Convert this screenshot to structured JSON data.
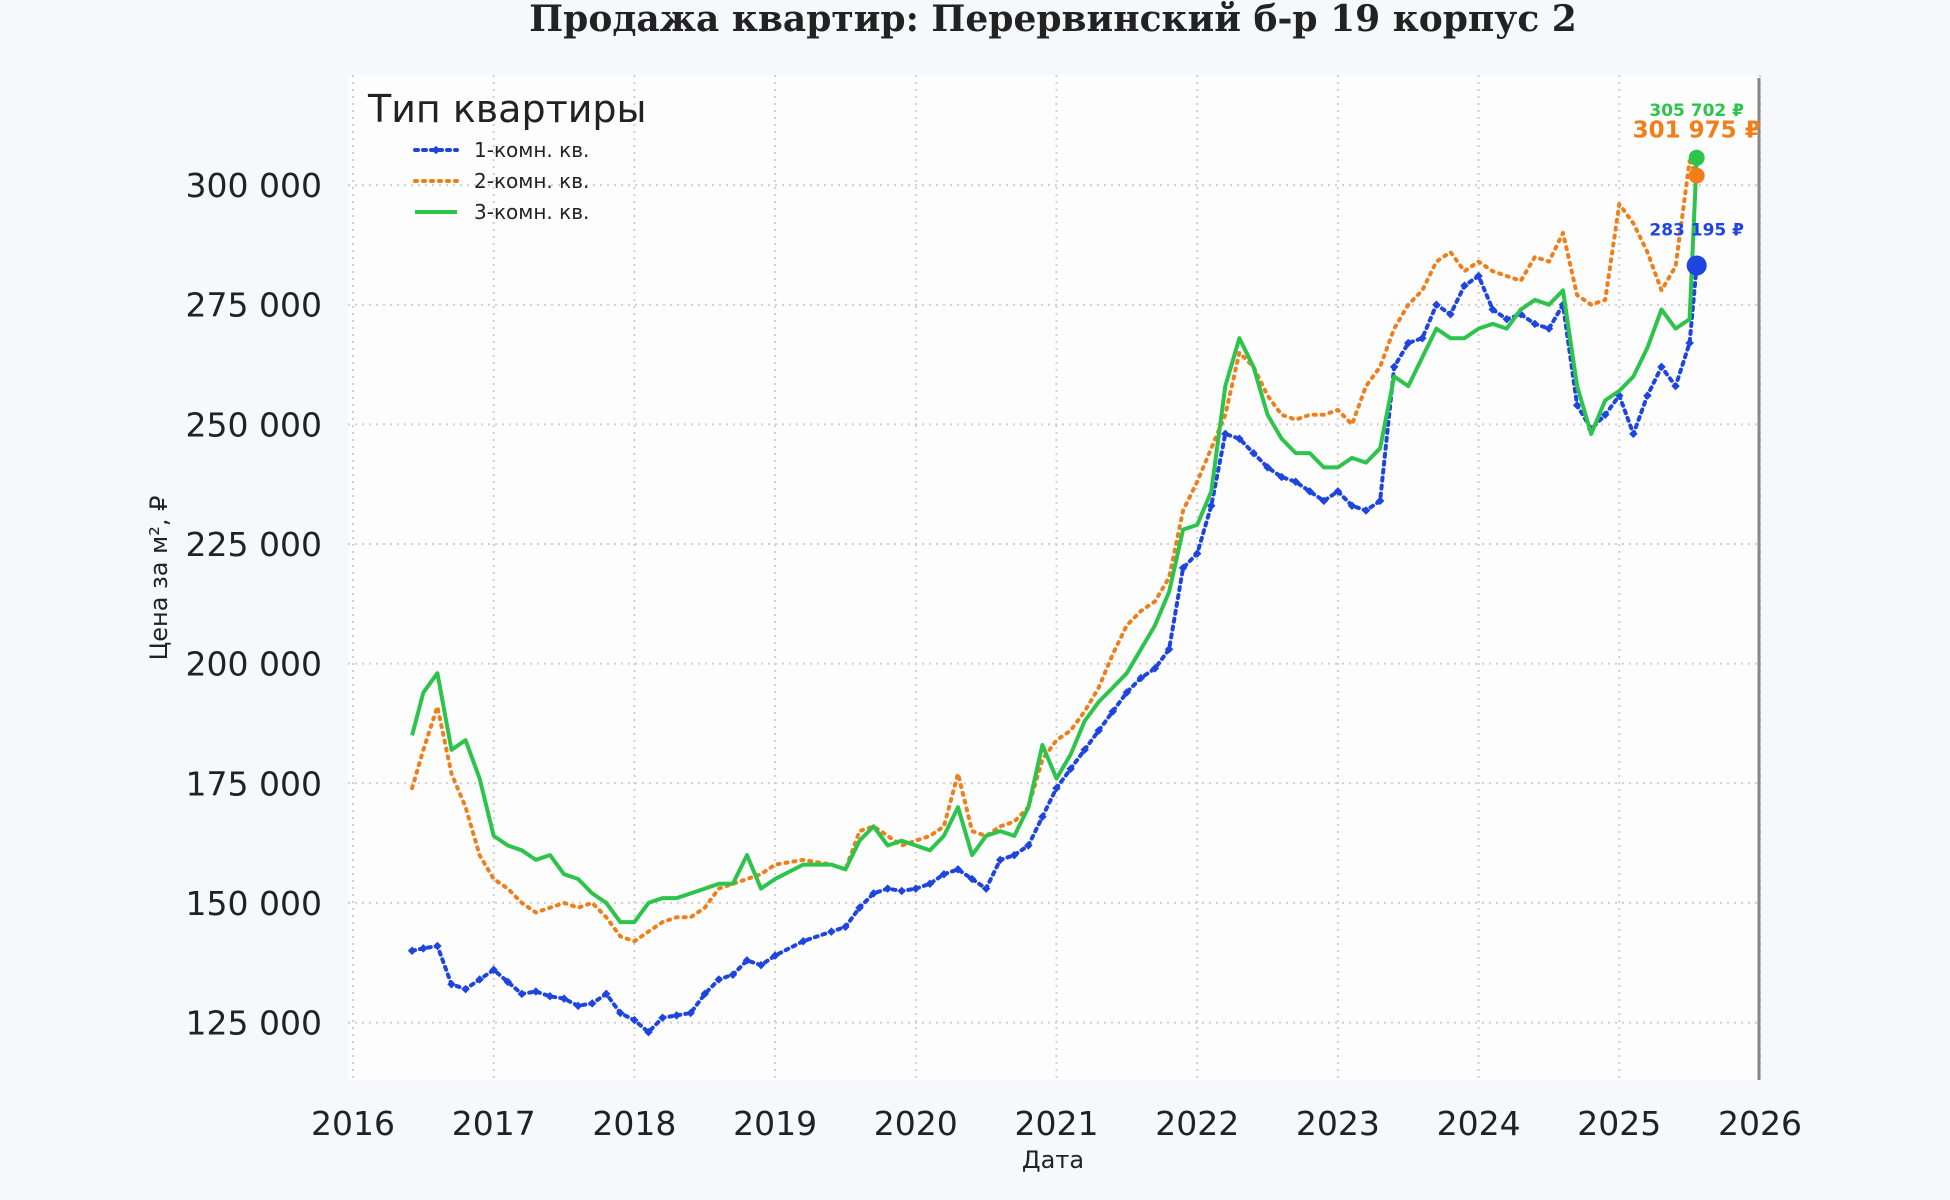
{
  "chart_data": {
    "type": "line",
    "title": "Продажа квартир: Перервинский б-р 19 корпус 2",
    "xlabel": "Дата",
    "ylabel": "Цена за м², ₽",
    "xlim": [
      2016.0,
      2026.0
    ],
    "ylim": [
      113000,
      323000
    ],
    "x_ticks": [
      2016,
      2017,
      2018,
      2019,
      2020,
      2021,
      2022,
      2023,
      2024,
      2025,
      2026
    ],
    "x_tick_labels": [
      "2016",
      "2017",
      "2018",
      "2019",
      "2020",
      "2021",
      "2022",
      "2023",
      "2024",
      "2025",
      "2026"
    ],
    "y_ticks": [
      125000,
      150000,
      175000,
      200000,
      225000,
      250000,
      275000,
      300000
    ],
    "y_tick_labels": [
      "125 000",
      "150 000",
      "175 000",
      "200 000",
      "225 000",
      "250 000",
      "275 000",
      "300 000"
    ],
    "grid": true,
    "legend": {
      "title": "Тип квартиры",
      "placement": "top-left"
    },
    "series": [
      {
        "name": "1-комн. кв.",
        "color": "#1f45e0",
        "style": "dotted-markers",
        "x": [
          2016.42,
          2016.5,
          2016.6,
          2016.7,
          2016.8,
          2016.9,
          2017.0,
          2017.1,
          2017.2,
          2017.3,
          2017.4,
          2017.5,
          2017.6,
          2017.7,
          2017.8,
          2017.9,
          2018.0,
          2018.1,
          2018.2,
          2018.3,
          2018.4,
          2018.5,
          2018.6,
          2018.7,
          2018.8,
          2018.9,
          2019.0,
          2019.2,
          2019.4,
          2019.5,
          2019.6,
          2019.7,
          2019.8,
          2019.9,
          2020.0,
          2020.1,
          2020.2,
          2020.3,
          2020.4,
          2020.5,
          2020.6,
          2020.7,
          2020.8,
          2020.9,
          2021.0,
          2021.1,
          2021.2,
          2021.3,
          2021.4,
          2021.5,
          2021.6,
          2021.7,
          2021.8,
          2021.9,
          2022.0,
          2022.1,
          2022.2,
          2022.3,
          2022.4,
          2022.5,
          2022.6,
          2022.7,
          2022.8,
          2022.9,
          2023.0,
          2023.1,
          2023.2,
          2023.3,
          2023.4,
          2023.5,
          2023.6,
          2023.7,
          2023.8,
          2023.9,
          2024.0,
          2024.1,
          2024.2,
          2024.3,
          2024.4,
          2024.5,
          2024.6,
          2024.7,
          2024.8,
          2024.9,
          2025.0,
          2025.1,
          2025.2,
          2025.3,
          2025.4,
          2025.5,
          2025.55
        ],
        "y": [
          140000,
          140500,
          141000,
          133000,
          132000,
          134000,
          136000,
          133500,
          131000,
          131500,
          130500,
          130000,
          128500,
          129000,
          131000,
          127000,
          125500,
          123000,
          126000,
          126500,
          127000,
          131000,
          134000,
          135000,
          138000,
          137000,
          139000,
          142000,
          144000,
          145000,
          149000,
          152000,
          153000,
          152500,
          153000,
          154000,
          156000,
          157000,
          155000,
          153000,
          159000,
          160000,
          162000,
          168000,
          174000,
          178000,
          182000,
          186000,
          190000,
          194000,
          197000,
          199000,
          203000,
          220000,
          223000,
          233000,
          248000,
          247000,
          244000,
          241000,
          239000,
          238000,
          236000,
          234000,
          236000,
          233000,
          232000,
          234000,
          262000,
          267000,
          268000,
          275000,
          273000,
          279000,
          281000,
          274000,
          272000,
          273000,
          271000,
          270000,
          275000,
          254000,
          249000,
          252000,
          256000,
          248000,
          256000,
          262000,
          258000,
          267000,
          283195
        ]
      },
      {
        "name": "2-комн. кв.",
        "color": "#f07f1a",
        "style": "dotted",
        "x": [
          2016.42,
          2016.5,
          2016.6,
          2016.7,
          2016.8,
          2016.9,
          2017.0,
          2017.1,
          2017.2,
          2017.3,
          2017.4,
          2017.5,
          2017.6,
          2017.7,
          2017.8,
          2017.9,
          2018.0,
          2018.1,
          2018.2,
          2018.3,
          2018.4,
          2018.5,
          2018.6,
          2018.7,
          2018.8,
          2018.9,
          2019.0,
          2019.2,
          2019.4,
          2019.5,
          2019.6,
          2019.7,
          2019.8,
          2019.9,
          2020.0,
          2020.1,
          2020.2,
          2020.3,
          2020.4,
          2020.5,
          2020.6,
          2020.7,
          2020.8,
          2020.9,
          2021.0,
          2021.1,
          2021.2,
          2021.3,
          2021.4,
          2021.5,
          2021.6,
          2021.7,
          2021.8,
          2021.9,
          2022.0,
          2022.1,
          2022.2,
          2022.3,
          2022.4,
          2022.5,
          2022.6,
          2022.7,
          2022.8,
          2022.9,
          2023.0,
          2023.1,
          2023.2,
          2023.3,
          2023.4,
          2023.5,
          2023.6,
          2023.7,
          2023.8,
          2023.9,
          2024.0,
          2024.1,
          2024.2,
          2024.3,
          2024.4,
          2024.5,
          2024.6,
          2024.7,
          2024.8,
          2024.9,
          2025.0,
          2025.1,
          2025.2,
          2025.3,
          2025.4,
          2025.5,
          2025.55
        ],
        "y": [
          174000,
          182000,
          191000,
          177000,
          170000,
          160000,
          155000,
          153000,
          150000,
          148000,
          149000,
          150000,
          149000,
          150000,
          147000,
          143000,
          142000,
          144000,
          146000,
          147000,
          147000,
          149000,
          153000,
          154000,
          155000,
          156000,
          158000,
          159000,
          158000,
          157000,
          165000,
          166000,
          164000,
          162000,
          163000,
          164000,
          166000,
          177000,
          165000,
          164000,
          166000,
          167000,
          170000,
          180000,
          184000,
          186000,
          190000,
          195000,
          202000,
          208000,
          211000,
          213000,
          218000,
          232000,
          238000,
          245000,
          252000,
          265000,
          262000,
          256000,
          252000,
          251000,
          252000,
          252000,
          253000,
          250000,
          258000,
          262000,
          270000,
          275000,
          278000,
          284000,
          286000,
          282000,
          284000,
          282000,
          281000,
          280000,
          285000,
          284000,
          290000,
          277000,
          275000,
          276000,
          296000,
          292000,
          286000,
          278000,
          283000,
          305000,
          301975
        ]
      },
      {
        "name": "3-комн. кв.",
        "color": "#2cc44a",
        "style": "solid",
        "x": [
          2016.42,
          2016.5,
          2016.6,
          2016.7,
          2016.8,
          2016.9,
          2017.0,
          2017.1,
          2017.2,
          2017.3,
          2017.4,
          2017.5,
          2017.6,
          2017.7,
          2017.8,
          2017.9,
          2018.0,
          2018.1,
          2018.2,
          2018.3,
          2018.4,
          2018.5,
          2018.6,
          2018.7,
          2018.8,
          2018.9,
          2019.0,
          2019.2,
          2019.4,
          2019.5,
          2019.6,
          2019.7,
          2019.8,
          2019.9,
          2020.0,
          2020.1,
          2020.2,
          2020.3,
          2020.4,
          2020.5,
          2020.6,
          2020.7,
          2020.8,
          2020.9,
          2021.0,
          2021.1,
          2021.2,
          2021.3,
          2021.4,
          2021.5,
          2021.6,
          2021.7,
          2021.8,
          2021.9,
          2022.0,
          2022.1,
          2022.2,
          2022.3,
          2022.4,
          2022.5,
          2022.6,
          2022.7,
          2022.8,
          2022.9,
          2023.0,
          2023.1,
          2023.2,
          2023.3,
          2023.4,
          2023.5,
          2023.6,
          2023.7,
          2023.8,
          2023.9,
          2024.0,
          2024.1,
          2024.2,
          2024.3,
          2024.4,
          2024.5,
          2024.6,
          2024.7,
          2024.8,
          2024.9,
          2025.0,
          2025.1,
          2025.2,
          2025.3,
          2025.4,
          2025.5,
          2025.55
        ],
        "y": [
          185000,
          194000,
          198000,
          182000,
          184000,
          176000,
          164000,
          162000,
          161000,
          159000,
          160000,
          156000,
          155000,
          152000,
          150000,
          146000,
          146000,
          150000,
          151000,
          151000,
          152000,
          153000,
          154000,
          154000,
          160000,
          153000,
          155000,
          158000,
          158000,
          157000,
          163000,
          166000,
          162000,
          163000,
          162000,
          161000,
          164000,
          170000,
          160000,
          164000,
          165000,
          164000,
          170000,
          183000,
          176000,
          181000,
          188000,
          192000,
          195000,
          198000,
          203000,
          208000,
          215000,
          228000,
          229000,
          236000,
          258000,
          268000,
          262000,
          252000,
          247000,
          244000,
          244000,
          241000,
          241000,
          243000,
          242000,
          245000,
          260000,
          258000,
          264000,
          270000,
          268000,
          268000,
          270000,
          271000,
          270000,
          274000,
          276000,
          275000,
          278000,
          258000,
          248000,
          255000,
          257000,
          260000,
          266000,
          274000,
          270000,
          272000,
          305702
        ]
      }
    ],
    "last_values": [
      {
        "series": "3-комн. кв.",
        "x": 2025.55,
        "value": 305702,
        "label": "305 702 ₽"
      },
      {
        "series": "2-комн. кв.",
        "x": 2025.55,
        "value": 301975,
        "label": "301 975 ₽"
      },
      {
        "series": "1-комн. кв.",
        "x": 2025.55,
        "value": 283195,
        "label": "283 195 ₽"
      }
    ],
    "colors": {
      "background": "#f6f8fb",
      "plot_background": "#fdfdfe",
      "grid": "#cfcfcf",
      "text": "#222222",
      "right_edge": "#888888"
    }
  }
}
